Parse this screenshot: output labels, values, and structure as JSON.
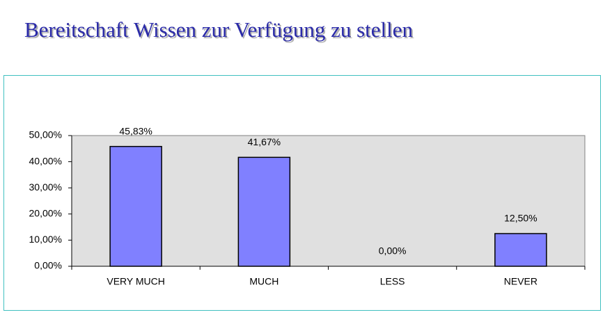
{
  "chart_data": {
    "type": "bar",
    "title": "Bereitschaft Wissen zur Verfügung zu stellen",
    "categories": [
      "VERY MUCH",
      "MUCH",
      "LESS",
      "NEVER"
    ],
    "values": [
      45.83,
      41.67,
      0,
      12.5
    ],
    "value_labels": [
      "45,83%",
      "41,67%",
      "0,00%",
      "12,50%"
    ],
    "color": "#8080ff",
    "ylim": [
      0,
      50
    ],
    "yticks": [
      {
        "value": 0,
        "label": "0,00%"
      },
      {
        "value": 10,
        "label": "10,00%"
      },
      {
        "value": 20,
        "label": "20,00%"
      },
      {
        "value": 30,
        "label": "30,00%"
      },
      {
        "value": 40,
        "label": "40,00%"
      },
      {
        "value": 50,
        "label": "50,00%"
      }
    ],
    "grid": false
  }
}
